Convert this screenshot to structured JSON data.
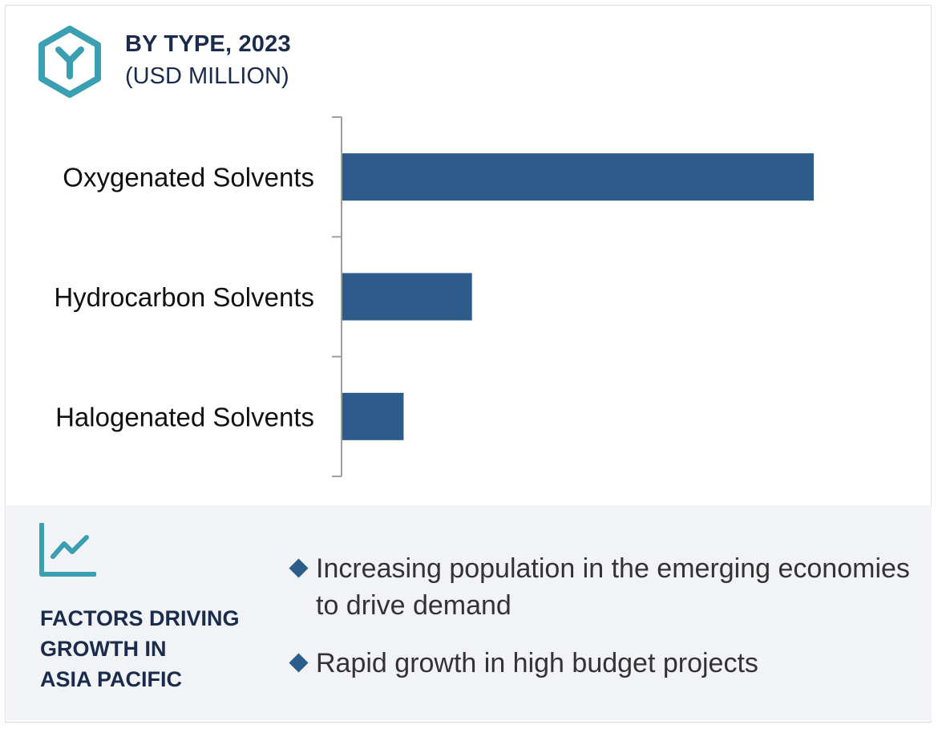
{
  "header": {
    "title": "BY TYPE, 2023",
    "subtitle": "(USD MILLION)",
    "icon": "hexagon-y-icon"
  },
  "chart_data": {
    "type": "bar",
    "orientation": "horizontal",
    "categories": [
      "Oxygenated Solvents",
      "Hydrocarbon Solvents",
      "Halogenated Solvents"
    ],
    "values": [
      1000,
      275,
      130
    ],
    "value_axis": {
      "visible": false,
      "tick_labels": false
    },
    "grid": false,
    "bar_color": "#2d5b8a",
    "axis_color": "#9aa0a6"
  },
  "factors": {
    "icon": "line-chart-icon",
    "title_lines": [
      "FACTORS DRIVING",
      "GROWTH IN",
      "ASIA PACIFIC"
    ],
    "bullets": [
      "Increasing population in the emerging economies to drive demand",
      "Rapid growth in high budget projects"
    ]
  },
  "colors": {
    "accent": "#2d5b8a",
    "teal": "#3a9fb0",
    "title": "#1a2b4c",
    "panel_bg": "#f1f3f7"
  }
}
